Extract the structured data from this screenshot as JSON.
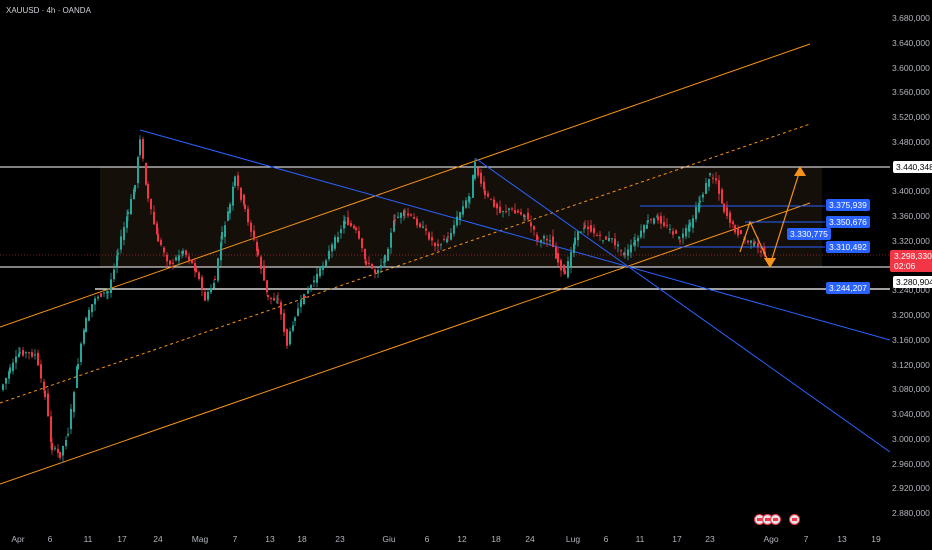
{
  "header": {
    "symbol": "XAUUSD · 4h · OANDA"
  },
  "colors": {
    "up": "#26a69a",
    "down": "#f23645",
    "channel": "#f7931a",
    "down_channel": "#2962ff",
    "level": "#ffffff",
    "range_fill": "rgba(255,190,110,0.08)"
  },
  "price_axis": {
    "ticks": [
      "3.680,000",
      "3.640,000",
      "3.600,000",
      "3.560,000",
      "3.520,000",
      "3.480,000",
      "3.400,000",
      "3.360,000",
      "3.320,000",
      "3.240,000",
      "3.200,000",
      "3.160,000",
      "3.120,000",
      "3.080,000",
      "3.040,000",
      "3.000,000",
      "2.960,000",
      "2.920,000",
      "2.880,000"
    ],
    "tick_values": [
      3680,
      3640,
      3600,
      3560,
      3520,
      3480,
      3400,
      3360,
      3320,
      3240,
      3200,
      3160,
      3120,
      3080,
      3040,
      3000,
      2960,
      2920,
      2880
    ]
  },
  "price_tags": {
    "top_level": "3.440,348",
    "last_price": "3.298,330",
    "countdown": "02:06",
    "support_level": "3.280,904",
    "blue_1": "3.375,939",
    "blue_2": "3.350,676",
    "blue_3": "3.330,775",
    "blue_4": "3.310,492",
    "blue_5": "3.244,207"
  },
  "time_axis": {
    "labels": [
      "Apr",
      "6",
      "11",
      "17",
      "24",
      "Mag",
      "7",
      "13",
      "18",
      "23",
      "Giu",
      "6",
      "12",
      "18",
      "24",
      "Lug",
      "6",
      "11",
      "17",
      "23",
      "Ago",
      "7",
      "13",
      "19"
    ]
  },
  "events": [
    "event-flag",
    "event-flag",
    "event-flag",
    "event-flag"
  ],
  "chart_data": {
    "type": "candlestick",
    "symbol": "XAUUSD",
    "interval": "4h",
    "source": "OANDA",
    "y_range": [
      2860,
      3700
    ],
    "levels": [
      3440.348,
      3280.904,
      3244.207
    ],
    "last_price": 3298.33
  }
}
